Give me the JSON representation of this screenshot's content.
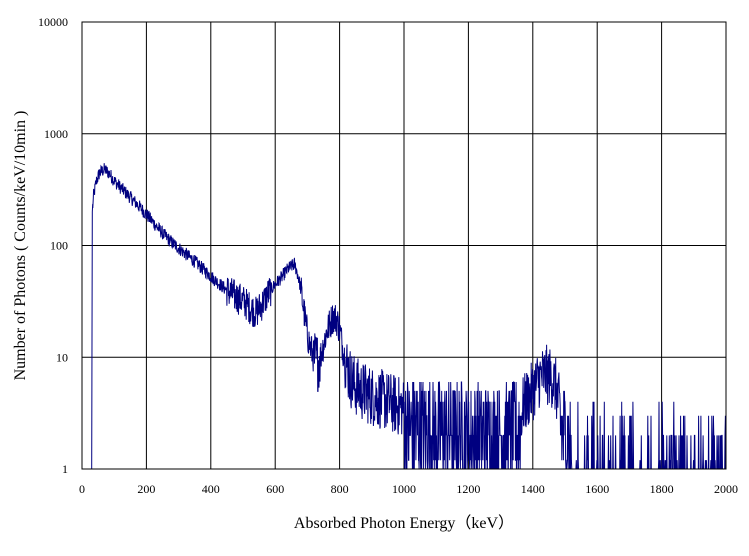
{
  "chart_data": {
    "type": "line",
    "title": "",
    "xlabel": "Absorbed Photon Energy（keV）",
    "ylabel": "Number  of Photons ( Counts/keV/10min  )",
    "xlim": [
      0,
      2000
    ],
    "ylim": [
      1,
      10000
    ],
    "yscale": "log",
    "grid": true,
    "x_ticks": [
      0,
      200,
      400,
      600,
      800,
      1000,
      1200,
      1400,
      1600,
      1800,
      2000
    ],
    "x_tick_labels": [
      "0",
      "200",
      "400",
      "600",
      "800",
      "1000",
      "1200",
      "1400",
      "1600",
      "1800",
      "2000"
    ],
    "y_ticks": [
      1,
      10,
      100,
      1000,
      10000
    ],
    "y_tick_labels": [
      "1",
      "10",
      "100",
      "1000",
      "10000"
    ],
    "line_color": "#000080",
    "series": [
      {
        "x": [
          30,
          32,
          36,
          45,
          55,
          70,
          85,
          100,
          120,
          150,
          180,
          200,
          230,
          260,
          290,
          320,
          350,
          380,
          410,
          440,
          470,
          500,
          520,
          540,
          560,
          580,
          600,
          620,
          640,
          660,
          670,
          680,
          690,
          700,
          710,
          720,
          730,
          740,
          750,
          760,
          770,
          780,
          790,
          800,
          810,
          820,
          830,
          840,
          850,
          870,
          900,
          950,
          1000,
          1050,
          1100,
          1150,
          1200,
          1250,
          1300,
          1350,
          1400,
          1420,
          1440,
          1460,
          1470,
          1480,
          1500,
          1520,
          1550,
          1600,
          1650,
          1700,
          1750,
          1800,
          1850,
          1900,
          1950,
          2000
        ],
        "values": [
          1,
          200,
          280,
          380,
          450,
          480,
          440,
          380,
          330,
          270,
          220,
          190,
          150,
          120,
          100,
          85,
          72,
          60,
          50,
          42,
          36,
          32,
          28,
          25,
          30,
          38,
          45,
          52,
          62,
          68,
          55,
          40,
          25,
          16,
          12,
          10,
          9,
          10,
          13,
          17,
          20,
          23,
          22,
          18,
          12,
          9,
          7,
          6,
          5.5,
          5,
          4.5,
          4,
          3.5,
          3.2,
          3,
          3,
          2.8,
          2.7,
          2.6,
          3,
          5,
          6.5,
          7,
          6.5,
          5.5,
          4,
          2.5,
          2,
          1.7,
          1.5,
          1.4,
          1.3,
          1.3,
          1.3,
          1.2,
          1.2,
          1.2,
          1.2
        ]
      }
    ]
  }
}
